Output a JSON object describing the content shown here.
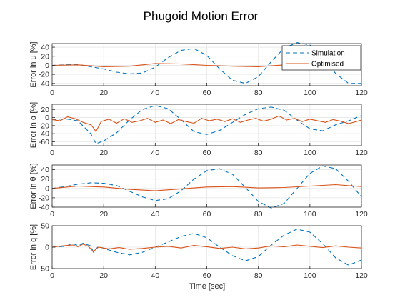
{
  "figure": {
    "title": "Phugoid Motion Error",
    "xlabel": "Time [sec]"
  },
  "colors": {
    "simulation": "#0072BD",
    "optimised": "#D95319",
    "grid": "#e6e6e6",
    "axis": "#262626"
  },
  "legend": {
    "entries": [
      "Simulation",
      "Optimised"
    ],
    "placement": "top-right of first panel"
  },
  "chart_data": [
    {
      "type": "line",
      "ylabel": "Error in u [%]",
      "xlim": [
        0,
        120
      ],
      "ylim": [
        -45,
        48
      ],
      "xticks": [
        0,
        20,
        40,
        60,
        80,
        100,
        120
      ],
      "yticks": [
        -40,
        -20,
        0,
        20,
        40
      ],
      "grid": true,
      "series": [
        {
          "name": "Simulation",
          "style": "dashed",
          "x": [
            0,
            5,
            10,
            15,
            20,
            25,
            30,
            35,
            40,
            45,
            50,
            55,
            60,
            65,
            70,
            75,
            80,
            85,
            90,
            95,
            100,
            105,
            110,
            115,
            120
          ],
          "y": [
            0,
            1,
            2,
            -3,
            -8,
            -15,
            -19,
            -17,
            -4,
            17,
            33,
            37,
            22,
            -8,
            -33,
            -40,
            -25,
            8,
            38,
            50,
            45,
            18,
            -18,
            -40,
            -40
          ]
        },
        {
          "name": "Optimised",
          "style": "solid",
          "x": [
            0,
            10,
            20,
            30,
            40,
            50,
            60,
            70,
            80,
            90,
            100,
            110,
            120
          ],
          "y": [
            0,
            1,
            -3,
            -2,
            4,
            3,
            0,
            -2,
            -3,
            1,
            3,
            -1,
            1
          ]
        }
      ]
    },
    {
      "type": "line",
      "ylabel": "Error in α [%]",
      "xlim": [
        0,
        120
      ],
      "ylim": [
        -70,
        33
      ],
      "xticks": [
        0,
        20,
        40,
        60,
        80,
        100,
        120
      ],
      "yticks": [
        -60,
        -40,
        -20,
        0,
        20
      ],
      "grid": true,
      "series": [
        {
          "name": "Simulation",
          "style": "dashed",
          "x": [
            0,
            5,
            10,
            15,
            17,
            20,
            25,
            30,
            35,
            40,
            45,
            50,
            55,
            60,
            65,
            70,
            75,
            80,
            85,
            90,
            95,
            100,
            105,
            110,
            115,
            120
          ],
          "y": [
            -5,
            -3,
            -8,
            -40,
            -65,
            -58,
            -38,
            -6,
            20,
            30,
            22,
            -5,
            -35,
            -42,
            -32,
            -12,
            8,
            22,
            26,
            18,
            -6,
            -28,
            -33,
            -18,
            -8,
            5
          ]
        },
        {
          "name": "Optimised",
          "style": "solid",
          "x": [
            0,
            3,
            6,
            9,
            12,
            15,
            16,
            17,
            19,
            22,
            25,
            28,
            31,
            34,
            37,
            40,
            43,
            46,
            49,
            52,
            55,
            58,
            61,
            64,
            67,
            70,
            73,
            76,
            79,
            82,
            85,
            88,
            91,
            94,
            97,
            100,
            103,
            106,
            109,
            112,
            115,
            118,
            120
          ],
          "y": [
            -5,
            -8,
            2,
            -3,
            -12,
            -18,
            -25,
            -35,
            -10,
            -4,
            -14,
            -3,
            -12,
            -8,
            -2,
            -12,
            -6,
            -15,
            -5,
            -10,
            -14,
            -2,
            -8,
            -4,
            -10,
            -3,
            -12,
            -6,
            -2,
            -9,
            -4,
            4,
            -6,
            -2,
            -10,
            -4,
            -8,
            -12,
            -5,
            -9,
            -15,
            -10,
            -6
          ]
        }
      ]
    },
    {
      "type": "line",
      "ylabel": "Error in θ [%]",
      "xlim": [
        0,
        120
      ],
      "ylim": [
        -40,
        50
      ],
      "xticks": [
        0,
        20,
        40,
        60,
        80,
        100,
        120
      ],
      "yticks": [
        -40,
        -20,
        0,
        20,
        40
      ],
      "grid": true,
      "series": [
        {
          "name": "Simulation",
          "style": "dashed",
          "x": [
            0,
            5,
            10,
            15,
            20,
            25,
            30,
            35,
            40,
            45,
            50,
            55,
            60,
            65,
            70,
            75,
            80,
            85,
            90,
            95,
            100,
            105,
            110,
            115,
            120
          ],
          "y": [
            0,
            4,
            9,
            12,
            11,
            6,
            -6,
            -18,
            -26,
            -22,
            -5,
            20,
            38,
            42,
            30,
            2,
            -28,
            -42,
            -32,
            0,
            32,
            48,
            42,
            15,
            -18
          ]
        },
        {
          "name": "Optimised",
          "style": "solid",
          "x": [
            0,
            10,
            20,
            30,
            40,
            50,
            60,
            70,
            80,
            90,
            100,
            110,
            120
          ],
          "y": [
            0,
            5,
            3,
            -2,
            -5,
            -1,
            3,
            4,
            1,
            2,
            5,
            8,
            4
          ]
        }
      ]
    },
    {
      "type": "line",
      "ylabel": "Error in q [%]",
      "xlim": [
        0,
        120
      ],
      "ylim": [
        -50,
        50
      ],
      "xticks": [
        0,
        20,
        40,
        60,
        80,
        100,
        120
      ],
      "yticks": [
        -50,
        0,
        50
      ],
      "grid": true,
      "series": [
        {
          "name": "Simulation",
          "style": "dashed",
          "x": [
            0,
            5,
            8,
            10,
            12,
            15,
            16,
            18,
            20,
            25,
            30,
            35,
            40,
            45,
            50,
            55,
            60,
            65,
            70,
            75,
            80,
            85,
            90,
            95,
            100,
            105,
            110,
            115,
            120
          ],
          "y": [
            0,
            2,
            8,
            4,
            9,
            3,
            -12,
            2,
            -3,
            -12,
            -18,
            -12,
            0,
            12,
            25,
            32,
            22,
            0,
            -20,
            -32,
            -22,
            5,
            28,
            42,
            35,
            8,
            -25,
            -42,
            -30
          ]
        },
        {
          "name": "Optimised",
          "style": "solid",
          "x": [
            0,
            4,
            8,
            10,
            12,
            14,
            16,
            18,
            22,
            26,
            30,
            35,
            40,
            45,
            50,
            55,
            60,
            65,
            70,
            75,
            80,
            85,
            90,
            95,
            100,
            105,
            110,
            115,
            120
          ],
          "y": [
            0,
            3,
            5,
            1,
            7,
            2,
            -10,
            0,
            -4,
            -1,
            -5,
            -3,
            0,
            2,
            -2,
            4,
            1,
            -3,
            0,
            -4,
            -2,
            3,
            1,
            5,
            2,
            -1,
            3,
            0,
            -2
          ]
        }
      ]
    }
  ]
}
